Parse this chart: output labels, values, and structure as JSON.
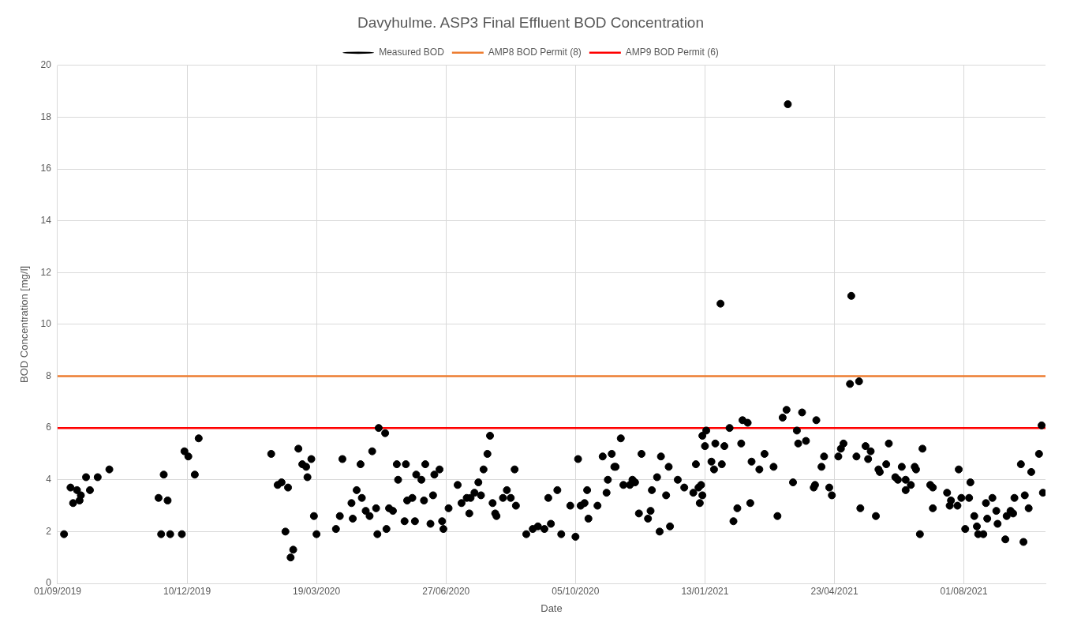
{
  "chart_data": {
    "type": "scatter",
    "title": "Davyhulme. ASP3 Final Effluent BOD Concentration",
    "xlabel": "Date",
    "ylabel": "BOD Concentration [mg/l]",
    "xlim": [
      "2019-09-01",
      "2021-10-03"
    ],
    "xticks": [
      {
        "value": "2019-09-01",
        "label": "01/09/2019"
      },
      {
        "value": "2019-12-10",
        "label": "10/12/2019"
      },
      {
        "value": "2020-03-19",
        "label": "19/03/2020"
      },
      {
        "value": "2020-06-27",
        "label": "27/06/2020"
      },
      {
        "value": "2020-10-05",
        "label": "05/10/2020"
      },
      {
        "value": "2021-01-13",
        "label": "13/01/2021"
      },
      {
        "value": "2021-04-23",
        "label": "23/04/2021"
      },
      {
        "value": "2021-08-01",
        "label": "01/08/2021"
      }
    ],
    "ylim": [
      0,
      20
    ],
    "yticks": [
      0,
      2,
      4,
      6,
      8,
      10,
      12,
      14,
      16,
      18,
      20
    ],
    "grid": true,
    "legend": "top",
    "marker": "circle",
    "ref_lines": [
      {
        "axis": "y",
        "value": 8,
        "label": "AMP8 BOD Permit (8)",
        "color": "#ed7d31"
      },
      {
        "axis": "y",
        "value": 6,
        "label": "AMP9 BOD Permit (6)",
        "color": "#ff0000"
      }
    ],
    "series": [
      {
        "name": "Measured BOD",
        "color": "#000000",
        "x": [
          "2019-09-06",
          "2019-09-11",
          "2019-09-13",
          "2019-09-16",
          "2019-09-18",
          "2019-09-19",
          "2019-09-23",
          "2019-09-26",
          "2019-10-02",
          "2019-10-11",
          "2019-11-18",
          "2019-11-20",
          "2019-11-22",
          "2019-11-25",
          "2019-11-27",
          "2019-12-06",
          "2019-12-08",
          "2019-12-11",
          "2019-12-16",
          "2019-12-19",
          "2020-02-13",
          "2020-02-18",
          "2020-02-21",
          "2020-02-24",
          "2020-02-26",
          "2020-02-28",
          "2020-03-01",
          "2020-03-05",
          "2020-03-08",
          "2020-03-11",
          "2020-03-12",
          "2020-03-15",
          "2020-03-17",
          "2020-03-19",
          "2020-04-03",
          "2020-04-06",
          "2020-04-08",
          "2020-04-15",
          "2020-04-16",
          "2020-04-19",
          "2020-04-22",
          "2020-04-23",
          "2020-04-26",
          "2020-04-29",
          "2020-05-01",
          "2020-05-04",
          "2020-05-06",
          "2020-05-05",
          "2020-05-11",
          "2020-05-12",
          "2020-05-14",
          "2020-05-17",
          "2020-05-20",
          "2020-05-21",
          "2020-05-26",
          "2020-05-27",
          "2020-05-28",
          "2020-06-01",
          "2020-06-03",
          "2020-06-04",
          "2020-06-08",
          "2020-06-10",
          "2020-06-11",
          "2020-06-15",
          "2020-06-17",
          "2020-06-18",
          "2020-06-22",
          "2020-06-24",
          "2020-06-25",
          "2020-06-29",
          "2020-07-06",
          "2020-07-09",
          "2020-07-13",
          "2020-07-15",
          "2020-07-16",
          "2020-07-19",
          "2020-07-22",
          "2020-07-24",
          "2020-07-26",
          "2020-07-29",
          "2020-07-31",
          "2020-08-02",
          "2020-08-04",
          "2020-08-05",
          "2020-08-10",
          "2020-08-13",
          "2020-08-16",
          "2020-08-19",
          "2020-08-20",
          "2020-08-28",
          "2020-09-02",
          "2020-09-06",
          "2020-09-11",
          "2020-09-14",
          "2020-09-16",
          "2020-09-21",
          "2020-09-24",
          "2020-10-01",
          "2020-10-05",
          "2020-10-07",
          "2020-10-09",
          "2020-10-12",
          "2020-10-14",
          "2020-10-15",
          "2020-10-22",
          "2020-10-26",
          "2020-10-29",
          "2020-10-30",
          "2020-11-02",
          "2020-11-04",
          "2020-11-05",
          "2020-11-09",
          "2020-11-11",
          "2020-11-16",
          "2020-11-18",
          "2020-11-20",
          "2020-11-23",
          "2020-11-25",
          "2020-11-30",
          "2020-12-02",
          "2020-12-03",
          "2020-12-07",
          "2020-12-09",
          "2020-12-10",
          "2020-12-14",
          "2020-12-16",
          "2020-12-17",
          "2020-12-23",
          "2020-12-28",
          "2021-01-04",
          "2021-01-06",
          "2021-01-08",
          "2021-01-09",
          "2021-01-10",
          "2021-01-11",
          "2021-01-11",
          "2021-01-13",
          "2021-01-14",
          "2021-01-18",
          "2021-01-20",
          "2021-01-21",
          "2021-01-25",
          "2021-01-26",
          "2021-01-28",
          "2021-02-01",
          "2021-02-04",
          "2021-02-07",
          "2021-02-10",
          "2021-02-11",
          "2021-02-15",
          "2021-02-17",
          "2021-02-18",
          "2021-02-24",
          "2021-02-28",
          "2021-03-07",
          "2021-03-10",
          "2021-03-14",
          "2021-03-17",
          "2021-03-18",
          "2021-03-22",
          "2021-03-25",
          "2021-03-26",
          "2021-03-29",
          "2021-04-01",
          "2021-04-07",
          "2021-04-08",
          "2021-04-09",
          "2021-04-13",
          "2021-04-15",
          "2021-04-19",
          "2021-04-21",
          "2021-04-26",
          "2021-04-28",
          "2021-04-30",
          "2021-05-05",
          "2021-05-06",
          "2021-05-10",
          "2021-05-12",
          "2021-05-13",
          "2021-05-17",
          "2021-05-19",
          "2021-05-21",
          "2021-05-25",
          "2021-05-27",
          "2021-05-28",
          "2021-06-02",
          "2021-06-04",
          "2021-06-09",
          "2021-06-11",
          "2021-06-14",
          "2021-06-17",
          "2021-06-17",
          "2021-06-21",
          "2021-06-24",
          "2021-06-25",
          "2021-06-28",
          "2021-06-30",
          "2021-07-06",
          "2021-07-08",
          "2021-07-08",
          "2021-07-19",
          "2021-07-21",
          "2021-07-22",
          "2021-07-27",
          "2021-07-28",
          "2021-07-30",
          "2021-08-02",
          "2021-08-05",
          "2021-08-06",
          "2021-08-09",
          "2021-08-11",
          "2021-08-12",
          "2021-08-16",
          "2021-08-18",
          "2021-08-19",
          "2021-08-23",
          "2021-08-26",
          "2021-08-27",
          "2021-09-02",
          "2021-09-03",
          "2021-09-06",
          "2021-09-08",
          "2021-09-09",
          "2021-09-14",
          "2021-09-16",
          "2021-09-17",
          "2021-09-20",
          "2021-09-22",
          "2021-09-28",
          "2021-09-30",
          "2021-10-01"
        ],
        "values": [
          1.9,
          3.7,
          3.1,
          3.6,
          3.2,
          3.4,
          4.1,
          3.6,
          4.1,
          4.4,
          3.3,
          1.9,
          4.2,
          3.2,
          1.9,
          1.9,
          5.1,
          4.9,
          4.2,
          5.6,
          5.0,
          3.8,
          3.9,
          2.0,
          3.7,
          1.0,
          1.3,
          5.2,
          4.6,
          4.5,
          4.1,
          4.8,
          2.6,
          1.9,
          2.1,
          2.6,
          4.8,
          3.1,
          2.5,
          3.6,
          4.6,
          3.3,
          2.8,
          2.6,
          5.1,
          2.9,
          6.0,
          1.9,
          5.8,
          2.1,
          2.9,
          2.8,
          4.6,
          4.0,
          2.4,
          4.6,
          3.2,
          3.3,
          2.4,
          4.2,
          4.0,
          3.2,
          4.6,
          2.3,
          3.4,
          4.2,
          4.4,
          2.4,
          2.1,
          2.9,
          3.8,
          3.1,
          3.3,
          2.7,
          3.3,
          3.5,
          3.9,
          3.4,
          4.4,
          5.0,
          5.7,
          3.1,
          2.7,
          2.6,
          3.3,
          3.6,
          3.3,
          4.4,
          3.0,
          1.9,
          2.1,
          2.2,
          2.1,
          3.3,
          2.3,
          3.6,
          1.9,
          3.0,
          1.8,
          4.8,
          3.0,
          3.1,
          3.6,
          2.5,
          3.0,
          4.9,
          3.5,
          4.0,
          5.0,
          4.5,
          4.5,
          5.6,
          3.8,
          3.8,
          4.0,
          3.9,
          2.7,
          5.0,
          2.5,
          2.8,
          3.6,
          4.1,
          2.0,
          4.9,
          3.4,
          4.5,
          2.2,
          4.0,
          3.7,
          3.5,
          4.6,
          3.7,
          3.1,
          3.8,
          5.7,
          3.4,
          5.3,
          5.9,
          4.7,
          4.4,
          5.4,
          10.8,
          4.6,
          5.3,
          6.0,
          2.4,
          2.9,
          5.4,
          6.3,
          6.2,
          3.1,
          4.7,
          4.4,
          5.0,
          4.5,
          2.6,
          6.4,
          6.7,
          18.5,
          3.9,
          5.9,
          5.4,
          6.6,
          5.5,
          3.7,
          3.8,
          6.3,
          4.5,
          4.9,
          3.7,
          3.4,
          4.9,
          5.2,
          5.4,
          7.7,
          11.1,
          4.9,
          7.8,
          2.9,
          5.3,
          4.8,
          5.1,
          2.6,
          4.4,
          4.3,
          4.6,
          5.4,
          4.1,
          4.0,
          4.5,
          4.0,
          3.6,
          3.8,
          4.5,
          4.4,
          1.9,
          5.2,
          3.8,
          3.7,
          2.9,
          3.5,
          3.0,
          3.2,
          3.0,
          4.4,
          3.3,
          2.1,
          3.3,
          3.9,
          2.6,
          2.2,
          1.9,
          1.9,
          3.1,
          2.5,
          3.3,
          2.8,
          2.3,
          1.7,
          2.6,
          2.8,
          2.7,
          3.3,
          4.6,
          1.6,
          3.4,
          2.9,
          4.3,
          5.0,
          6.1,
          3.5
        ]
      }
    ]
  }
}
